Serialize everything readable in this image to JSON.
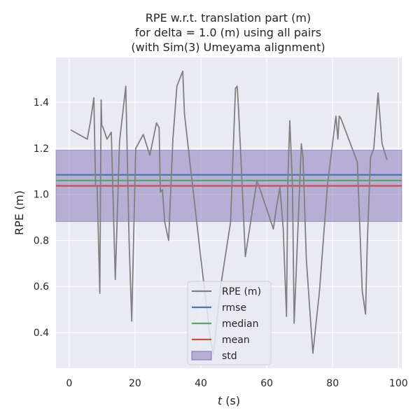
{
  "chart_data": {
    "type": "line",
    "title_lines": [
      "RPE w.r.t. translation part (m)",
      "for delta = 1.0 (m) using all pairs",
      "(with Sim(3) Umeyama alignment)"
    ],
    "xlabel_italic": "t",
    "xlabel_rest": " (s)",
    "ylabel": "RPE (m)",
    "xlim": [
      -4,
      101
    ],
    "ylim": [
      0.245,
      1.595
    ],
    "xticks": [
      0,
      20,
      40,
      60,
      80,
      100
    ],
    "xtick_labels": [
      "0",
      "20",
      "40",
      "60",
      "80",
      "100"
    ],
    "yticks": [
      0.4,
      0.6,
      0.8,
      1.0,
      1.2,
      1.4
    ],
    "ytick_labels": [
      "0.4",
      "0.6",
      "0.8",
      "1.0",
      "1.2",
      "1.4"
    ],
    "grid": true,
    "legend_position": "lower center",
    "background_color": "#eaeaf2",
    "series": [
      {
        "name": "RPE (m)",
        "color": "#808080",
        "x": [
          0.5,
          5.5,
          6.5,
          7.0,
          7.5,
          8.0,
          8.5,
          9.3,
          9.7,
          9.9,
          10.3,
          11.5,
          12.8,
          14.0,
          15.3,
          17.2,
          18.2,
          19.0,
          20.2,
          22.5,
          24.5,
          26.5,
          27.3,
          27.7,
          28.3,
          29.0,
          30.2,
          31.5,
          32.7,
          34.5,
          35.0,
          40.0,
          43.0,
          43.8,
          46.0,
          49.0,
          50.0,
          50.5,
          51.0,
          51.4,
          52.0,
          53.5,
          57.0,
          58.0,
          62.0,
          63.0,
          64.0,
          65.0,
          66.0,
          66.4,
          67.0,
          67.8,
          68.3,
          70.5,
          71.0,
          72.0,
          73.0,
          74.0,
          76.0,
          78.5,
          81.0,
          81.6,
          82.0,
          82.5,
          87.5,
          89.0,
          90.0,
          90.5,
          91.5,
          92.5,
          93.8,
          95.0,
          96.5
        ],
        "y": [
          1.28,
          1.24,
          1.32,
          1.37,
          1.42,
          1.04,
          1.03,
          0.57,
          1.41,
          1.3,
          1.29,
          1.24,
          1.27,
          0.63,
          1.23,
          1.47,
          0.8,
          0.45,
          1.2,
          1.26,
          1.17,
          1.31,
          1.29,
          1.01,
          1.02,
          0.88,
          0.8,
          1.24,
          1.47,
          1.535,
          1.35,
          0.72,
          0.36,
          0.31,
          0.6,
          0.88,
          1.27,
          1.46,
          1.47,
          1.38,
          1.2,
          0.73,
          1.06,
          1.02,
          0.85,
          0.95,
          1.03,
          0.85,
          0.47,
          1.06,
          1.32,
          1.04,
          0.44,
          1.22,
          1.16,
          0.72,
          0.51,
          0.31,
          0.58,
          1.05,
          1.34,
          1.24,
          1.34,
          1.33,
          1.14,
          0.58,
          0.48,
          0.78,
          1.16,
          1.2,
          1.44,
          1.22,
          1.15
        ]
      },
      {
        "name": "rmse",
        "color": "#4c72b0",
        "value": 1.085
      },
      {
        "name": "median",
        "color": "#55a868",
        "value": 1.06
      },
      {
        "name": "mean",
        "color": "#c44e52",
        "value": 1.037
      }
    ],
    "std_band": {
      "name": "std",
      "color": "#8172b3",
      "low": 0.882,
      "high": 1.192
    }
  }
}
